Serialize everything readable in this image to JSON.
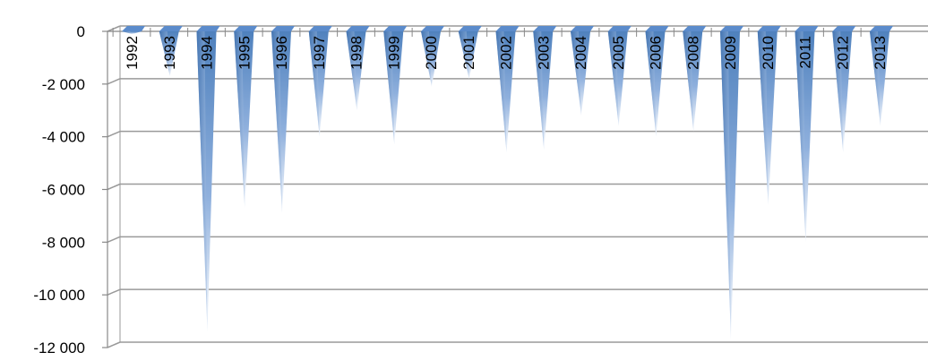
{
  "chart_data": {
    "type": "bar",
    "title": "",
    "xlabel": "",
    "ylabel": "",
    "ylim": [
      -12000,
      0
    ],
    "yticks": [
      0,
      -2000,
      -4000,
      -6000,
      -8000,
      -10000,
      -12000
    ],
    "ytick_labels": [
      "0",
      "-2 000",
      "-4 000",
      "-6 000",
      "-8 000",
      "-10 000",
      "-12 000"
    ],
    "grid": true,
    "legend": "none",
    "bar_color": "#4F81BD",
    "categories": [
      "1992",
      "1993",
      "1994",
      "1995",
      "1996",
      "1997",
      "1998",
      "1999",
      "2000",
      "2001",
      "2002",
      "2003",
      "2004",
      "2005",
      "2006",
      "2008",
      "2009",
      "2010",
      "2011",
      "2012",
      "2013"
    ],
    "values": [
      -100,
      -1700,
      -11400,
      -6700,
      -6900,
      -4000,
      -3000,
      -4300,
      -2100,
      -1800,
      -4600,
      -4500,
      -3200,
      -3600,
      -4000,
      -3800,
      -11700,
      -6600,
      -8000,
      -4600,
      -3600
    ]
  }
}
